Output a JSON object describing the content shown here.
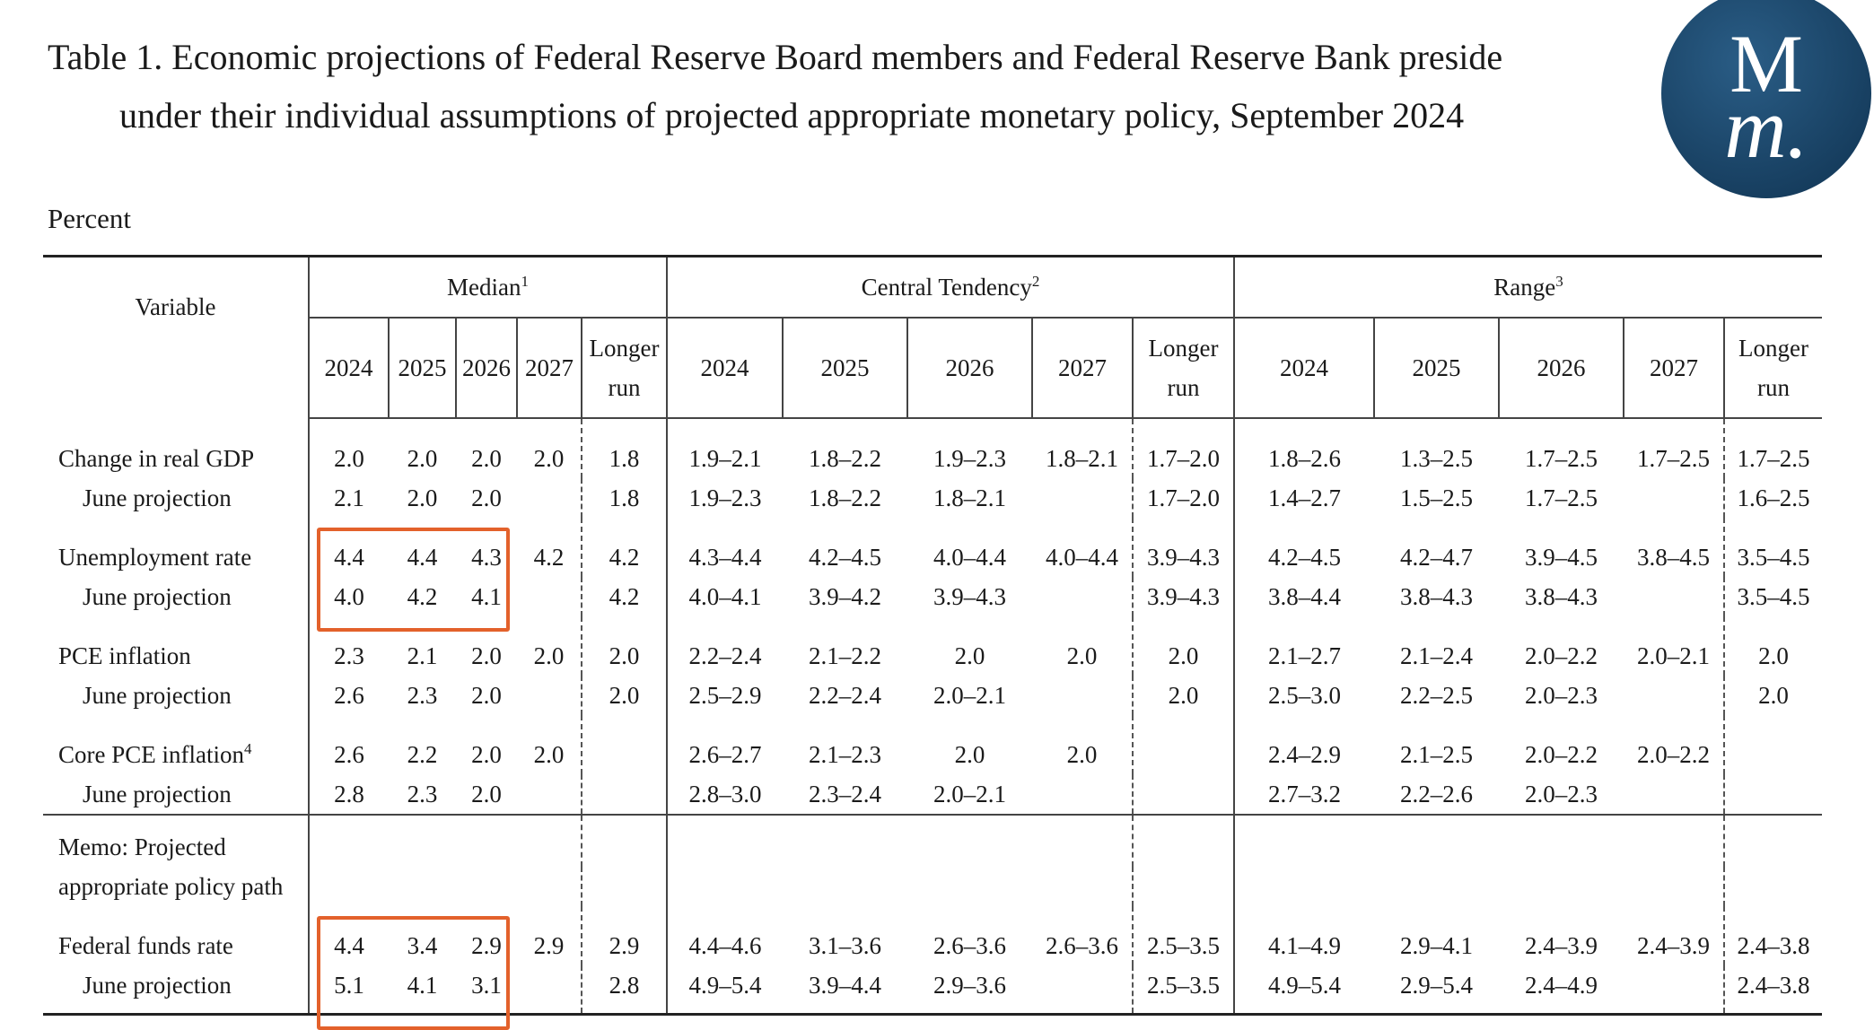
{
  "header": {
    "title_line1": "Table 1. Economic projections of Federal Reserve Board members and Federal Reserve Bank preside",
    "title_line2": "under their individual assumptions of projected appropriate monetary policy, September 2024",
    "unit": "Percent"
  },
  "logo": {
    "top": "M",
    "bottom": "m."
  },
  "table": {
    "variable_header": "Variable",
    "groups": [
      {
        "label": "Median",
        "sup": "1",
        "columns": [
          "2024",
          "2025",
          "2026",
          "2027",
          "Longer run"
        ]
      },
      {
        "label": "Central Tendency",
        "sup": "2",
        "columns": [
          "2024",
          "2025",
          "2026",
          "2027",
          "Longer run"
        ]
      },
      {
        "label": "Range",
        "sup": "3",
        "columns": [
          "2024",
          "2025",
          "2026",
          "2027",
          "Longer run"
        ]
      }
    ],
    "rows": [
      {
        "label": "Change in real GDP",
        "values": [
          "2.0",
          "2.0",
          "2.0",
          "2.0",
          "1.8",
          "1.9–2.1",
          "1.8–2.2",
          "1.9–2.3",
          "1.8–2.1",
          "1.7–2.0",
          "1.8–2.6",
          "1.3–2.5",
          "1.7–2.5",
          "1.7–2.5",
          "1.7–2.5"
        ]
      },
      {
        "label": "June projection",
        "values": [
          "2.1",
          "2.0",
          "2.0",
          null,
          "1.8",
          "1.9–2.3",
          "1.8–2.2",
          "1.8–2.1",
          null,
          "1.7–2.0",
          "1.4–2.7",
          "1.5–2.5",
          "1.7–2.5",
          null,
          "1.6–2.5"
        ]
      },
      {
        "label": "Unemployment rate",
        "values": [
          "4.4",
          "4.4",
          "4.3",
          "4.2",
          "4.2",
          "4.3–4.4",
          "4.2–4.5",
          "4.0–4.4",
          "4.0–4.4",
          "3.9–4.3",
          "4.2–4.5",
          "4.2–4.7",
          "3.9–4.5",
          "3.8–4.5",
          "3.5–4.5"
        ]
      },
      {
        "label": "June projection",
        "values": [
          "4.0",
          "4.2",
          "4.1",
          null,
          "4.2",
          "4.0–4.1",
          "3.9–4.2",
          "3.9–4.3",
          null,
          "3.9–4.3",
          "3.8–4.4",
          "3.8–4.3",
          "3.8–4.3",
          null,
          "3.5–4.5"
        ]
      },
      {
        "label": "PCE inflation",
        "values": [
          "2.3",
          "2.1",
          "2.0",
          "2.0",
          "2.0",
          "2.2–2.4",
          "2.1–2.2",
          "2.0",
          "2.0",
          "2.0",
          "2.1–2.7",
          "2.1–2.4",
          "2.0–2.2",
          "2.0–2.1",
          "2.0"
        ]
      },
      {
        "label": "June projection",
        "values": [
          "2.6",
          "2.3",
          "2.0",
          null,
          "2.0",
          "2.5–2.9",
          "2.2–2.4",
          "2.0–2.1",
          null,
          "2.0",
          "2.5–3.0",
          "2.2–2.5",
          "2.0–2.3",
          null,
          "2.0"
        ]
      },
      {
        "label": "Core PCE inflation",
        "sup": "4",
        "values": [
          "2.6",
          "2.2",
          "2.0",
          "2.0",
          null,
          "2.6–2.7",
          "2.1–2.3",
          "2.0",
          "2.0",
          null,
          "2.4–2.9",
          "2.1–2.5",
          "2.0–2.2",
          "2.0–2.2",
          null
        ]
      },
      {
        "label": "June projection",
        "values": [
          "2.8",
          "2.3",
          "2.0",
          null,
          null,
          "2.8–3.0",
          "2.3–2.4",
          "2.0–2.1",
          null,
          null,
          "2.7–3.2",
          "2.2–2.6",
          "2.0–2.3",
          null,
          null
        ]
      },
      {
        "label": "Memo: Projected"
      },
      {
        "label": "appropriate policy path"
      },
      {
        "label": "Federal funds rate",
        "values": [
          "4.4",
          "3.4",
          "2.9",
          "2.9",
          "2.9",
          "4.4–4.6",
          "3.1–3.6",
          "2.6–3.6",
          "2.6–3.6",
          "2.5–3.5",
          "4.1–4.9",
          "2.9–4.1",
          "2.4–3.9",
          "2.4–3.9",
          "2.4–3.8"
        ]
      },
      {
        "label": "June projection",
        "values": [
          "5.1",
          "4.1",
          "3.1",
          null,
          "2.8",
          "4.9–5.4",
          "3.9–4.4",
          "2.9–3.6",
          null,
          "2.5–3.5",
          "4.9–5.4",
          "2.9–5.4",
          "2.4–4.9",
          null,
          "2.4–3.8"
        ]
      }
    ]
  }
}
